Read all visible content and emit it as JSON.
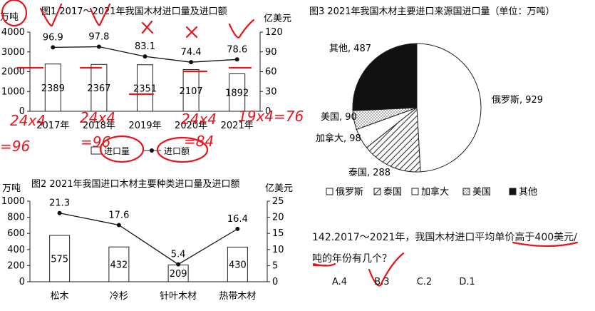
{
  "chart_data": [
    {
      "type": "bar+line",
      "title": "图1  2017～2021年我国木材进口量及进口额",
      "y_left_label": "万吨",
      "y_right_label": "亿美元",
      "categories": [
        "2017年",
        "2018年",
        "2019年",
        "2020年",
        "2021年"
      ],
      "series": [
        {
          "name": "进口量",
          "type": "bar",
          "axis": "left",
          "values": [
            2389,
            2367,
            2351,
            2107,
            1892
          ]
        },
        {
          "name": "进口额",
          "type": "line",
          "axis": "right",
          "values": [
            96.9,
            97.8,
            83.1,
            74.4,
            78.6
          ]
        }
      ],
      "y_left_ticks": [
        "0",
        "1000",
        "2000",
        "3000",
        "4000"
      ],
      "y_right_ticks": [
        "0",
        "30",
        "60",
        "90",
        "120"
      ],
      "ylim_left": [
        0,
        4000
      ],
      "ylim_right": [
        0,
        120
      ],
      "legend": [
        "进口量",
        "进口额"
      ],
      "legend_position": "bottom"
    },
    {
      "type": "bar+line",
      "title": "图2 2021年我国进口木材主要种类进口量及进口额",
      "y_left_label": "万吨",
      "y_right_label": "亿美元",
      "categories": [
        "松木",
        "冷杉",
        "针叶木材",
        "热带木材"
      ],
      "series": [
        {
          "name": "进口量",
          "type": "bar",
          "axis": "left",
          "values": [
            575,
            432,
            209,
            430
          ]
        },
        {
          "name": "进口额",
          "type": "line",
          "axis": "right",
          "values": [
            21.3,
            17.6,
            5.4,
            16.4
          ]
        }
      ],
      "y_left_ticks": [
        "0",
        "200",
        "400",
        "600",
        "800",
        "1000"
      ],
      "y_right_ticks": [
        "0",
        "5",
        "10",
        "15",
        "20",
        "25"
      ],
      "ylim_left": [
        0,
        1000
      ],
      "ylim_right": [
        0,
        25
      ]
    },
    {
      "type": "pie",
      "title": "图3 2021年我国木材主要进口来源国进口量（单位：万吨）",
      "slices": [
        {
          "name": "俄罗斯",
          "value": 929,
          "label": "俄罗斯, 929",
          "fill": "#ffffff"
        },
        {
          "name": "泰国",
          "value": 288,
          "label": "泰国, 288",
          "fill": "hatch"
        },
        {
          "name": "加拿大",
          "value": 98,
          "label": "加拿大, 98",
          "fill": "#ffffff"
        },
        {
          "name": "美国",
          "value": 90,
          "label": "美国, 90",
          "fill": "dots"
        },
        {
          "name": "其他",
          "value": 487,
          "label": "其他, 487",
          "fill": "#111111"
        }
      ],
      "legend": [
        "俄罗斯",
        "泰国",
        "加拿大",
        "美国",
        "其他"
      ],
      "legend_position": "bottom"
    }
  ],
  "question": {
    "text_line1": "142.2017～2021年，我国木材进口平均单价高于400美元/",
    "text_line2": "吨的年份有几个？",
    "options": [
      "A.4",
      "B.3",
      "C.2",
      "D.1"
    ]
  },
  "annotations": {
    "fig1_marks": [
      "✓",
      "✓",
      "×",
      "×",
      "✓"
    ],
    "calc_labels": [
      "24x4",
      "24x4",
      "24x4",
      "19x4=76",
      "=96",
      "=96",
      "=84"
    ],
    "accent_color": "#e8141c"
  }
}
